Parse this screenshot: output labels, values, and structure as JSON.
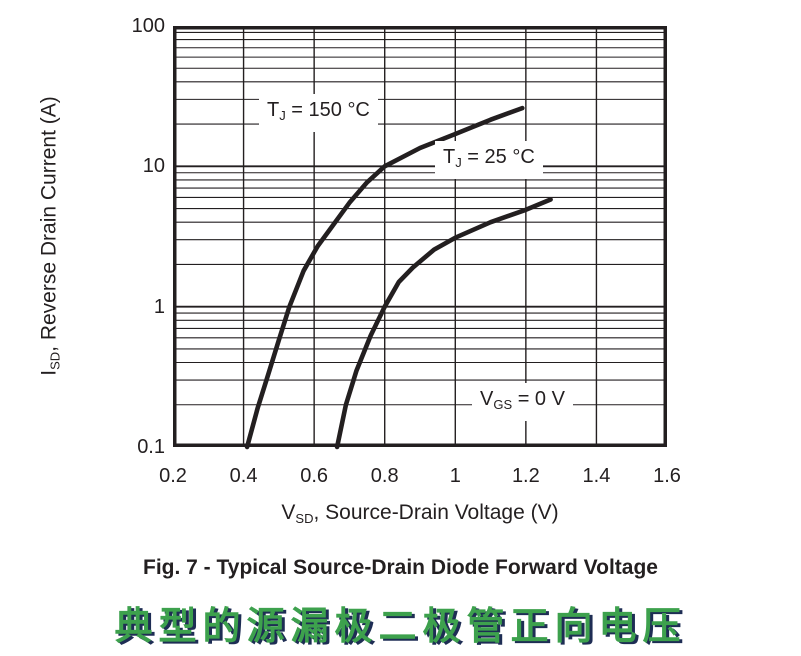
{
  "chart_data": {
    "type": "line",
    "x_scale": "linear",
    "y_scale": "log",
    "xlim": [
      0.2,
      1.6
    ],
    "ylim": [
      0.1,
      100
    ],
    "grid": true,
    "x_ticks": [
      {
        "v": 0.2,
        "label": "0.2"
      },
      {
        "v": 0.4,
        "label": "0.4"
      },
      {
        "v": 0.6,
        "label": "0.6"
      },
      {
        "v": 0.8,
        "label": "0.8"
      },
      {
        "v": 1.0,
        "label": "1"
      },
      {
        "v": 1.2,
        "label": "1.2"
      },
      {
        "v": 1.4,
        "label": "1.4"
      },
      {
        "v": 1.6,
        "label": "1.6"
      }
    ],
    "y_ticks": [
      {
        "v": 100,
        "label": "100"
      },
      {
        "v": 10,
        "label": "10"
      },
      {
        "v": 1,
        "label": "1"
      },
      {
        "v": 0.1,
        "label": "0.1"
      }
    ],
    "xlabel_parts": {
      "main": "V",
      "sub": "SD",
      "rest": ", Source-Drain Voltage (V)"
    },
    "ylabel_parts": {
      "main": "I",
      "sub": "SD",
      "rest": ", Reverse Drain Current (A)"
    },
    "series": [
      {
        "name": "TJ = 150 °C",
        "points": [
          [
            0.41,
            0.1
          ],
          [
            0.44,
            0.19
          ],
          [
            0.47,
            0.33
          ],
          [
            0.5,
            0.58
          ],
          [
            0.53,
            1.0
          ],
          [
            0.57,
            1.8
          ],
          [
            0.61,
            2.7
          ],
          [
            0.65,
            3.7
          ],
          [
            0.7,
            5.5
          ],
          [
            0.75,
            7.7
          ],
          [
            0.8,
            10
          ],
          [
            0.9,
            13.5
          ],
          [
            1.0,
            17
          ],
          [
            1.1,
            21.5
          ],
          [
            1.19,
            26
          ]
        ]
      },
      {
        "name": "TJ = 25 °C",
        "points": [
          [
            0.665,
            0.1
          ],
          [
            0.69,
            0.2
          ],
          [
            0.72,
            0.35
          ],
          [
            0.76,
            0.62
          ],
          [
            0.8,
            1.0
          ],
          [
            0.84,
            1.5
          ],
          [
            0.88,
            1.9
          ],
          [
            0.94,
            2.55
          ],
          [
            1.0,
            3.1
          ],
          [
            1.1,
            4.0
          ],
          [
            1.2,
            4.9
          ],
          [
            1.27,
            5.8
          ]
        ]
      }
    ],
    "annotations": [
      {
        "main": "T",
        "sub": "J",
        "rest": " = 150 °C"
      },
      {
        "main": "T",
        "sub": "J",
        "rest": " = 25 °C"
      },
      {
        "main": "V",
        "sub": "GS",
        "rest": " = 0 V"
      }
    ]
  },
  "caption": {
    "en": "Fig. 7 - Typical Source-Drain Diode Forward Voltage",
    "zh": "典型的源漏极二极管正向电压"
  },
  "colors": {
    "ink": "#231f20",
    "grid": "#231f20",
    "curve": "#231f20",
    "caption_green": "#3da14d",
    "caption_shadow": "#1e2d54",
    "background": "#ffffff"
  }
}
